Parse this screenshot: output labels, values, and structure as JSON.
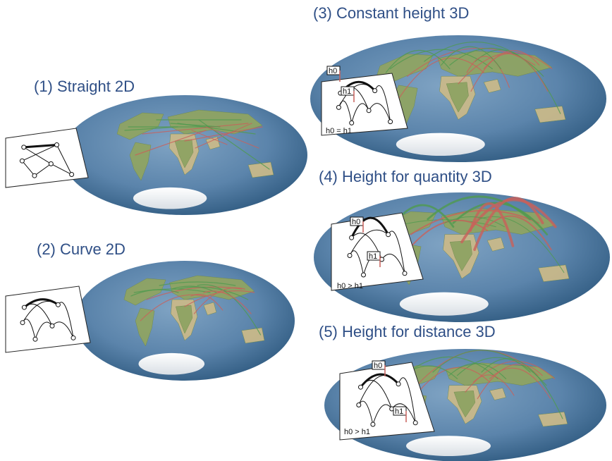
{
  "colors": {
    "title": "#2f4f86",
    "ocean_light": "#6f95b8",
    "ocean_dark": "#2f5a80",
    "land": "#8fa463",
    "desert": "#c9b98a",
    "ice": "#f2f4f6",
    "flow_green": "#4f9a4f",
    "flow_red": "#c9605a"
  },
  "panels": [
    {
      "id": "straight-2d",
      "title": "(1) Straight 2D",
      "style": "straight",
      "inset_label": "",
      "tags": []
    },
    {
      "id": "curve-2d",
      "title": "(2) Curve 2D",
      "style": "curve",
      "inset_label": "",
      "tags": []
    },
    {
      "id": "constant-height-3d",
      "title": "(3) Constant height 3D",
      "style": "constant",
      "inset_label": "h0 = h1",
      "tags": [
        "h0",
        "h1"
      ]
    },
    {
      "id": "height-quantity-3d",
      "title": "(4) Height for quantity 3D",
      "style": "quantity",
      "inset_label": "h0 > h1",
      "tags": [
        "h0",
        "h1"
      ]
    },
    {
      "id": "height-distance-3d",
      "title": "(5) Height for distance 3D",
      "style": "distance",
      "inset_label": "h0 > h1",
      "tags": [
        "h0",
        "h1"
      ]
    }
  ]
}
